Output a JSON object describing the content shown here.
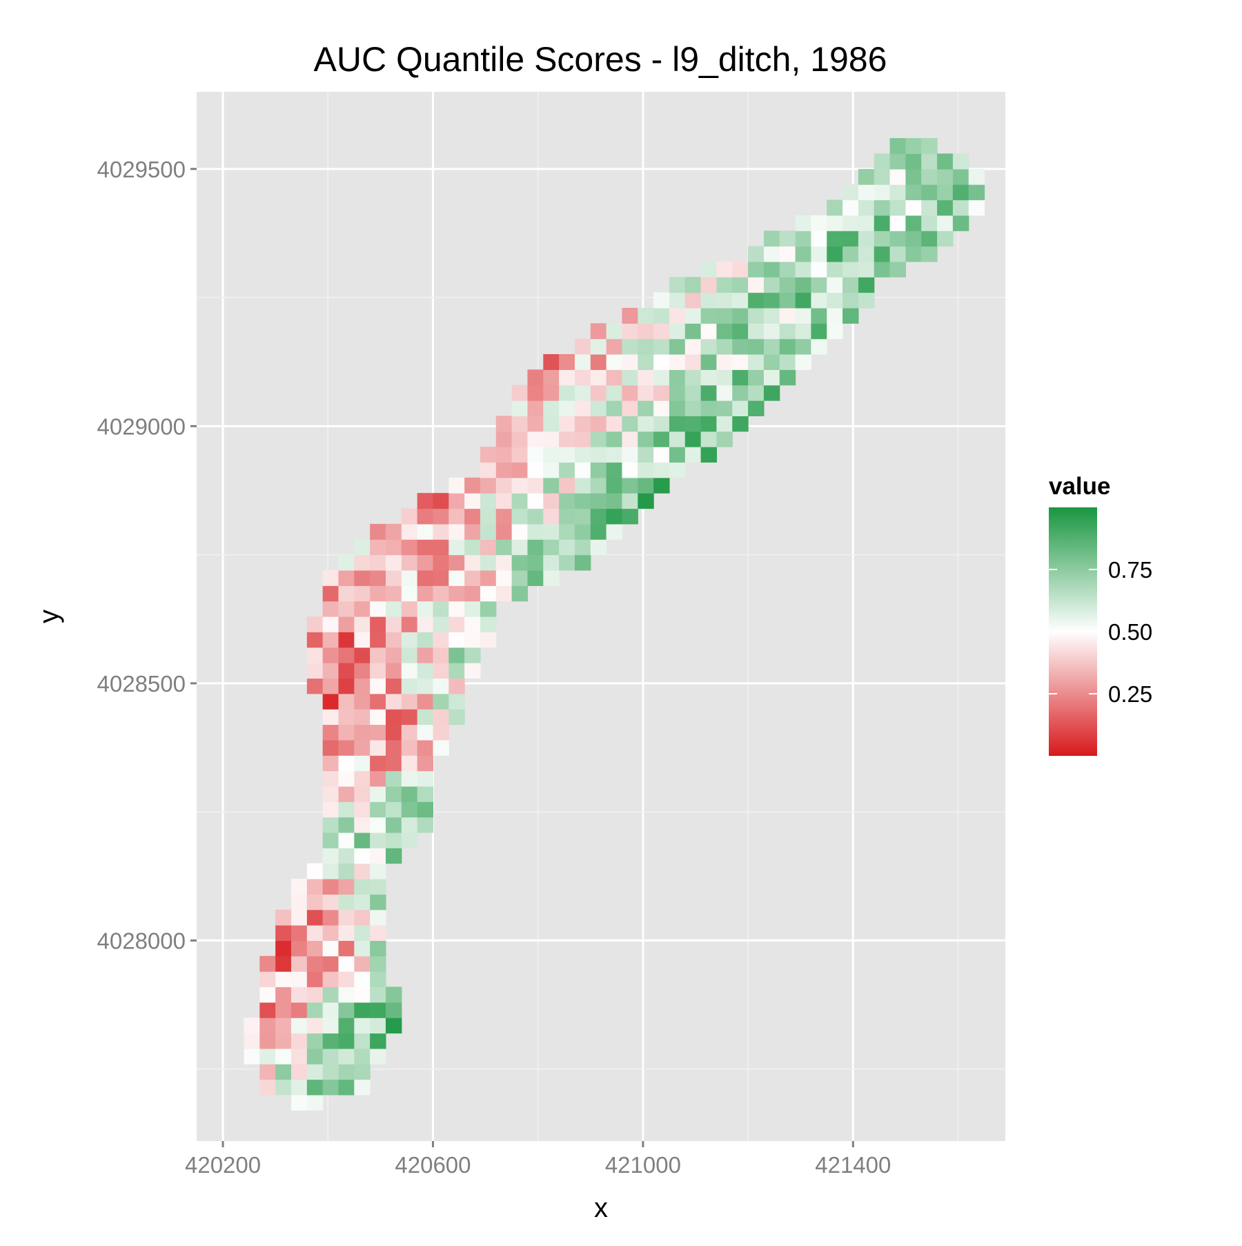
{
  "chart_data": {
    "type": "heatmap",
    "title": "AUC Quantile Scores - l9_ditch, 1986",
    "xlabel": "x",
    "ylabel": "y",
    "x_ticks": [
      420200,
      420600,
      421000,
      421400
    ],
    "y_ticks": [
      4028000,
      4028500,
      4029000,
      4029500
    ],
    "x_tick_labels": [
      "420200",
      "420600",
      "421000",
      "421400"
    ],
    "y_tick_labels": [
      "4028000",
      "4028500",
      "4029000",
      "4029500"
    ],
    "xlim": [
      420150,
      421690
    ],
    "ylim": [
      4027610,
      4029650
    ],
    "cell_size": 30,
    "grid": true,
    "legend": {
      "title": "value",
      "position": "right",
      "breaks": [
        0.25,
        0.5,
        0.75
      ],
      "break_labels": [
        "0.25",
        "0.50",
        "0.75"
      ],
      "low": 0.0,
      "high": 1.0,
      "colors": {
        "low": "#d7191c",
        "mid": "#ffffff",
        "high": "#1a9641"
      }
    },
    "region": {
      "polygon": [
        [
          420230,
          4027780
        ],
        [
          420300,
          4027690
        ],
        [
          420380,
          4027680
        ],
        [
          420470,
          4027700
        ],
        [
          420540,
          4027850
        ],
        [
          420510,
          4028000
        ],
        [
          420520,
          4028150
        ],
        [
          420600,
          4028230
        ],
        [
          420610,
          4028350
        ],
        [
          420660,
          4028460
        ],
        [
          420740,
          4028660
        ],
        [
          420910,
          4028740
        ],
        [
          421010,
          4028860
        ],
        [
          421200,
          4029000
        ],
        [
          421380,
          4029180
        ],
        [
          421450,
          4029280
        ],
        [
          421560,
          4029330
        ],
        [
          421660,
          4029430
        ],
        [
          421630,
          4029520
        ],
        [
          421540,
          4029560
        ],
        [
          421500,
          4029560
        ],
        [
          421410,
          4029490
        ],
        [
          421330,
          4029420
        ],
        [
          421200,
          4029340
        ],
        [
          421110,
          4029300
        ],
        [
          420980,
          4029230
        ],
        [
          420870,
          4029160
        ],
        [
          420760,
          4029080
        ],
        [
          420690,
          4028920
        ],
        [
          420600,
          4028870
        ],
        [
          420480,
          4028790
        ],
        [
          420380,
          4028710
        ],
        [
          420370,
          4028550
        ],
        [
          420380,
          4028400
        ],
        [
          420400,
          4028270
        ],
        [
          420380,
          4028170
        ],
        [
          420320,
          4028080
        ],
        [
          420290,
          4027980
        ]
      ],
      "zones": [
        {
          "x": 420500,
          "y": 4028500,
          "r": 110,
          "value": 0.12
        },
        {
          "x": 420450,
          "y": 4028430,
          "r": 90,
          "value": 0.25
        },
        {
          "x": 420760,
          "y": 4029000,
          "r": 140,
          "value": 0.22
        },
        {
          "x": 420640,
          "y": 4028800,
          "r": 120,
          "value": 0.3
        },
        {
          "x": 420850,
          "y": 4029170,
          "r": 150,
          "value": 0.35
        },
        {
          "x": 420310,
          "y": 4028000,
          "r": 90,
          "value": 0.18
        },
        {
          "x": 420970,
          "y": 4028830,
          "r": 150,
          "value": 0.85
        },
        {
          "x": 420900,
          "y": 4028680,
          "r": 120,
          "value": 0.88
        },
        {
          "x": 421150,
          "y": 4028940,
          "r": 120,
          "value": 0.8
        },
        {
          "x": 420520,
          "y": 4027820,
          "r": 90,
          "value": 0.82
        },
        {
          "x": 420580,
          "y": 4028200,
          "r": 90,
          "value": 0.75
        },
        {
          "x": 420630,
          "y": 4028520,
          "r": 90,
          "value": 0.8
        },
        {
          "x": 421400,
          "y": 4029230,
          "r": 140,
          "value": 0.78
        },
        {
          "x": 421500,
          "y": 4029460,
          "r": 100,
          "value": 0.7
        },
        {
          "x": 421150,
          "y": 4029180,
          "r": 110,
          "value": 0.62
        }
      ]
    }
  }
}
